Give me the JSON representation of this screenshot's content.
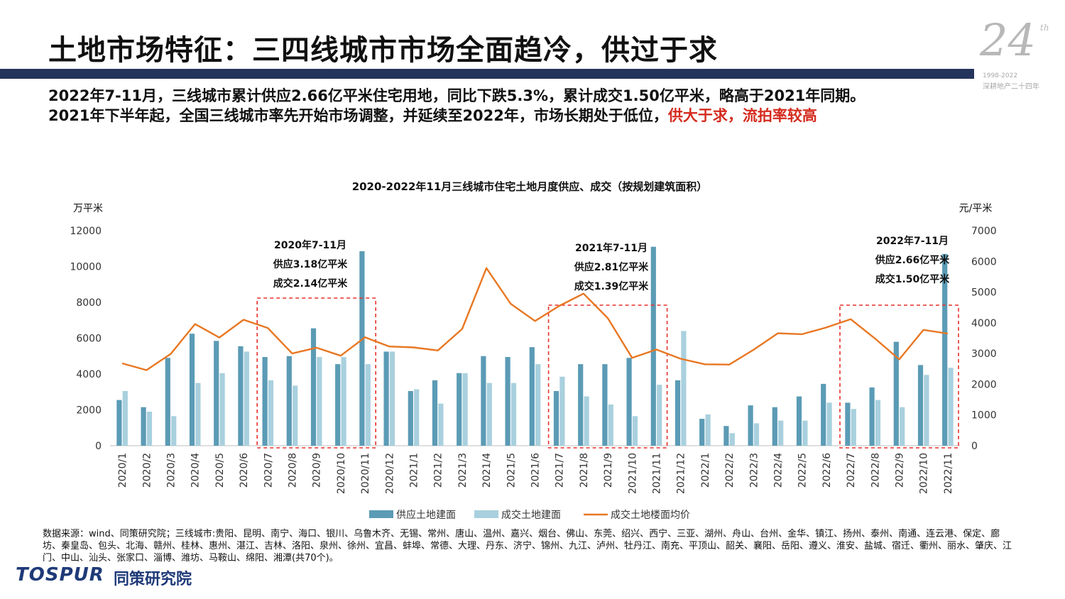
{
  "header": {
    "title": "土地市场特征：三四线城市市场全面趋冷，供过于求",
    "badge_number": "24",
    "badge_suffix": "th",
    "badge_years": "1998-2022",
    "badge_subtitle": "深耕地产二十四年"
  },
  "summary": {
    "line1": "2022年7-11月，三线城市累计供应2.66亿平米住宅用地，同比下跌5.3%，累计成交1.50亿平米，略高于2021年同期。",
    "line2_main": "2021年下半年起，全国三线城市率先开始市场调整，并延续至2022年，市场长期处于低位，",
    "line2_highlight": "供大于求，流拍率较高"
  },
  "chart_data": {
    "type": "bar",
    "title": "2020-2022年11月三线城市住宅土地月度供应、成交（按规划建筑面积）",
    "ylabel_left": "万平米",
    "ylabel_right": "元/平米",
    "ylim_left": [
      0,
      12000
    ],
    "ylim_right": [
      0,
      7000
    ],
    "yticks_left": [
      "0",
      "2000",
      "4000",
      "6000",
      "8000",
      "10000",
      "12000"
    ],
    "yticks_right": [
      "0",
      "1000",
      "2000",
      "3000",
      "4000",
      "5000",
      "6000",
      "7000"
    ],
    "categories": [
      "2020/1",
      "2020/2",
      "2020/3",
      "2020/4",
      "2020/5",
      "2020/6",
      "2020/7",
      "2020/8",
      "2020/9",
      "2020/10",
      "2020/11",
      "2020/12",
      "2021/1",
      "2021/2",
      "2021/3",
      "2021/4",
      "2021/5",
      "2021/6",
      "2021/7",
      "2021/8",
      "2021/9",
      "2021/10",
      "2021/11",
      "2021/12",
      "2022/1",
      "2022/2",
      "2022/3",
      "2022/4",
      "2022/5",
      "2022/6",
      "2022/7",
      "2022/8",
      "2022/9",
      "2022/10",
      "2022/11"
    ],
    "series": [
      {
        "name": "供应土地建面",
        "axis": "left",
        "kind": "bar",
        "color": "#5b9bb5",
        "values": [
          2550,
          2150,
          4900,
          6250,
          5850,
          5550,
          4950,
          5000,
          6550,
          4550,
          10850,
          5250,
          3050,
          3650,
          4050,
          5000,
          4950,
          5500,
          3050,
          4550,
          4550,
          4900,
          11100,
          3650,
          1500,
          1100,
          2250,
          2150,
          2750,
          3450,
          2400,
          3250,
          5800,
          4500,
          10700
        ]
      },
      {
        "name": "成交土地建面",
        "axis": "left",
        "kind": "bar",
        "color": "#a9d0de",
        "values": [
          3050,
          1900,
          1650,
          3500,
          4050,
          5250,
          3650,
          3350,
          4950,
          4950,
          4550,
          5250,
          3150,
          2350,
          4050,
          3500,
          3500,
          4550,
          3850,
          2750,
          2300,
          1650,
          3400,
          6400,
          1750,
          700,
          1250,
          1400,
          1400,
          2400,
          2050,
          2550,
          2150,
          3950,
          4350
        ]
      },
      {
        "name": "成交土地楼面均价",
        "axis": "right",
        "kind": "line",
        "color": "#e87722",
        "values": [
          2680,
          2460,
          2990,
          3960,
          3520,
          4100,
          3830,
          3000,
          3190,
          2930,
          3530,
          3230,
          3200,
          3100,
          3800,
          5780,
          4620,
          4060,
          4550,
          4950,
          4150,
          2860,
          3130,
          2830,
          2650,
          2640,
          3120,
          3660,
          3630,
          3850,
          4120,
          3490,
          2810,
          3770,
          3650
        ]
      }
    ],
    "annotations": [
      {
        "period": "2020/7-2020/11",
        "lines": [
          "2020年7-11月",
          "供应3.18亿平米",
          "成交2.14亿平米"
        ]
      },
      {
        "period": "2021/7-2021/11",
        "lines": [
          "2021年7-11月",
          "供应2.81亿平米",
          "成交1.39亿平米"
        ]
      },
      {
        "period": "2022/7-2022/11",
        "lines": [
          "2022年7-11月",
          "供应2.66亿平米",
          "成交1.50亿平米"
        ]
      }
    ],
    "legend_position": "bottom"
  },
  "source": {
    "text": "数据来源：wind、同策研究院；三线城市:贵阳、昆明、南宁、海口、银川、乌鲁木齐、无锡、常州、唐山、温州、嘉兴、烟台、佛山、东莞、绍兴、西宁、三亚、湖州、舟山、台州、金华、镇江、扬州、泰州、南通、连云港、保定、廊坊、秦皇岛、包头、北海、赣州、桂林、惠州、湛江、吉林、洛阳、泉州、徐州、宜昌、蚌埠、常德、大理、丹东、济宁、锦州、九江、泸州、牡丹江、南充、平顶山、韶关、襄阳、岳阳、遵义、淮安、盐城、宿迁、衢州、丽水、肇庆、江门、中山、汕头、张家口、淄博、潍坊、马鞍山、绵阳、湘潭(共70个)。"
  },
  "logo": {
    "en": "TOSPUR",
    "cn": "同策研究院"
  },
  "colors": {
    "title_bar": "#25345c",
    "highlight": "#d42b1e",
    "supply_bar": "#5b9bb5",
    "deal_bar": "#a9d0de",
    "price_line": "#e87722",
    "annotation_box": "#e8312b"
  }
}
